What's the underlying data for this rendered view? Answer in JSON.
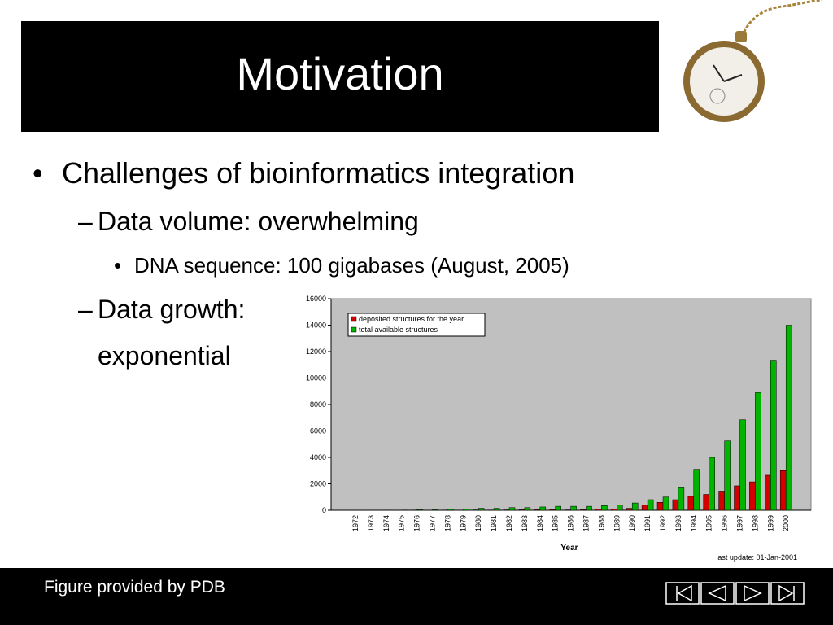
{
  "slide": {
    "title": "Motivation",
    "bullet_1": "Challenges of bioinformatics integration",
    "bullet_1_1": "Data volume: overwhelming",
    "bullet_1_1_1": "DNA sequence: 100 gigabases (August, 2005)",
    "bullet_1_2": [
      "Data growth:",
      "exponential"
    ],
    "footer": "Figure provided by PDB"
  },
  "chart_data": {
    "type": "bar",
    "x_label": "Year",
    "annotation": "last update: 01-Jan-2001",
    "categories": [
      "1972",
      "1973",
      "1974",
      "1975",
      "1976",
      "1977",
      "1978",
      "1979",
      "1980",
      "1981",
      "1982",
      "1983",
      "1984",
      "1985",
      "1986",
      "1987",
      "1988",
      "1989",
      "1990",
      "1991",
      "1992",
      "1993",
      "1994",
      "1995",
      "1996",
      "1997",
      "1998",
      "1999",
      "2000"
    ],
    "series": [
      {
        "name": "deposited structures for the year",
        "color": "#d40000",
        "values": [
          1,
          3,
          1,
          3,
          20,
          10,
          20,
          15,
          30,
          20,
          30,
          40,
          40,
          40,
          30,
          50,
          80,
          100,
          150,
          400,
          600,
          800,
          1050,
          1200,
          1450,
          1850,
          2150,
          2650,
          3000
        ]
      },
      {
        "name": "total available structures",
        "color": "#00b400",
        "values": [
          13,
          16,
          17,
          20,
          50,
          50,
          70,
          100,
          150,
          150,
          200,
          200,
          250,
          300,
          300,
          300,
          350,
          400,
          550,
          800,
          1000,
          1700,
          3100,
          4000,
          5250,
          6850,
          8900,
          11350,
          14000
        ]
      }
    ],
    "ylim": [
      0,
      16000
    ],
    "yticks": [
      0,
      2000,
      4000,
      6000,
      8000,
      10000,
      12000,
      14000,
      16000
    ],
    "grid": false,
    "legend": "upper left"
  }
}
